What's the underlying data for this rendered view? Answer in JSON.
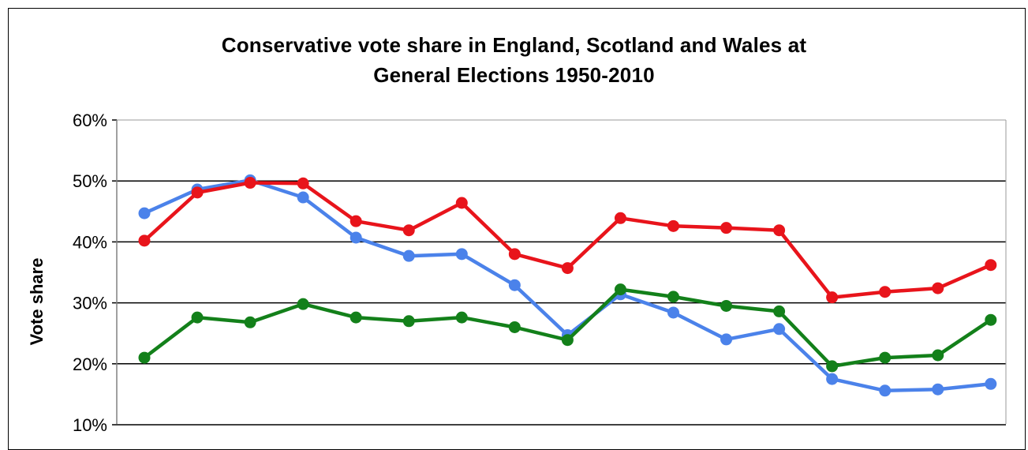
{
  "chart_data": {
    "type": "line",
    "title_line1": "Conservative vote share in England, Scotland and Wales at",
    "title_line2": "General Elections 1950-2010",
    "xlabel": "",
    "ylabel": "Vote share",
    "ylim": [
      10,
      60
    ],
    "yticks": [
      "60%",
      "50%",
      "40%",
      "30%",
      "20%",
      "10%"
    ],
    "ytick_values": [
      60,
      50,
      40,
      30,
      20,
      10
    ],
    "grid": "horizontal",
    "x_points": 17,
    "series": [
      {
        "color": "#e8141b",
        "values": [
          40.2,
          48.1,
          49.7,
          49.6,
          43.4,
          41.9,
          46.4,
          38.0,
          35.7,
          43.9,
          42.6,
          42.3,
          41.9,
          30.9,
          31.8,
          32.4,
          36.2
        ]
      },
      {
        "color": "#4b82ea",
        "values": [
          44.7,
          48.6,
          50.1,
          47.3,
          40.7,
          37.7,
          38.0,
          32.9,
          24.7,
          31.4,
          28.4,
          24.0,
          25.7,
          17.5,
          15.6,
          15.8,
          16.7
        ]
      },
      {
        "color": "#13801a",
        "values": [
          21.0,
          27.6,
          26.8,
          29.8,
          27.6,
          27.0,
          27.6,
          26.0,
          23.9,
          32.2,
          31.0,
          29.5,
          28.6,
          19.6,
          21.0,
          21.4,
          27.2
        ]
      }
    ]
  }
}
